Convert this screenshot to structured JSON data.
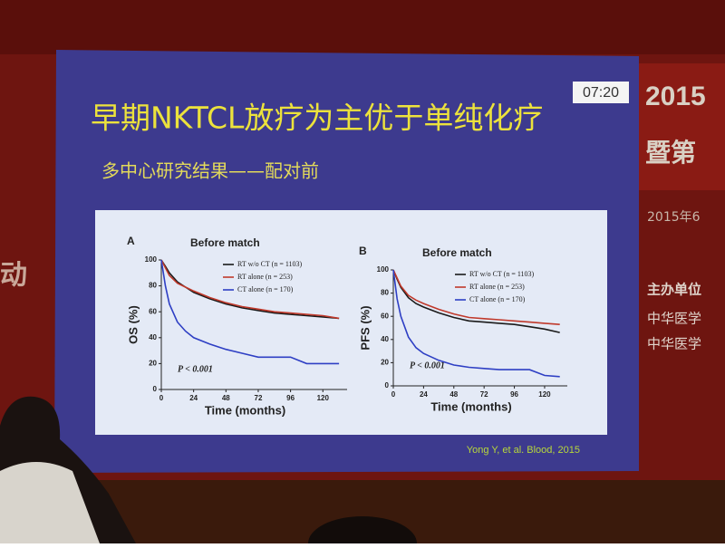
{
  "slide": {
    "title": "早期NKTCL放疗为主优于单纯化疗",
    "subtitle": "多中心研究结果——配对前",
    "timer": "07:20",
    "citation": "Yong Y, et al. Blood, 2015"
  },
  "background": {
    "banner_year": "2015",
    "banner_line": "暨第",
    "banner_date": "2015年6",
    "organizer_label": "主办单位",
    "organizer_1": "中华医学",
    "organizer_2": "中华医学",
    "left_char": "动"
  },
  "chart_data": [
    {
      "type": "line",
      "panel_label": "A",
      "title": "Before match",
      "x_label": "Time (months)",
      "y_label": "OS (%)",
      "annotation": "P < 0.001",
      "x": [
        0,
        3,
        6,
        12,
        18,
        24,
        36,
        48,
        60,
        72,
        84,
        96,
        108,
        120,
        132
      ],
      "xlim": [
        0,
        138
      ],
      "xticks": [
        0,
        24,
        48,
        72,
        96,
        120
      ],
      "ylim": [
        0,
        100
      ],
      "yticks": [
        0,
        20,
        40,
        60,
        80,
        100
      ],
      "legend": "upper right",
      "series": [
        {
          "name": "RT w/o CT (n = 1103)",
          "color": "#1a1a1a",
          "values": [
            100,
            95,
            90,
            83,
            79,
            75,
            70,
            66,
            63,
            61,
            59,
            58,
            57,
            56,
            55
          ]
        },
        {
          "name": "RT alone (n = 253)",
          "color": "#c0392b",
          "values": [
            100,
            94,
            88,
            82,
            79,
            76,
            71,
            67,
            64,
            62,
            60,
            59,
            58,
            57,
            55
          ]
        },
        {
          "name": "CT alone (n = 170)",
          "color": "#2e3fc4",
          "values": [
            100,
            80,
            66,
            52,
            45,
            40,
            35,
            31,
            28,
            25,
            25,
            25,
            20,
            20,
            20
          ]
        }
      ]
    },
    {
      "type": "line",
      "panel_label": "B",
      "title": "Before match",
      "x_label": "Time (months)",
      "y_label": "PFS (%)",
      "annotation": "P < 0.001",
      "x": [
        0,
        3,
        6,
        12,
        18,
        24,
        36,
        48,
        60,
        72,
        84,
        96,
        108,
        120,
        132
      ],
      "xlim": [
        0,
        138
      ],
      "xticks": [
        0,
        24,
        48,
        72,
        96,
        120
      ],
      "ylim": [
        0,
        100
      ],
      "yticks": [
        0,
        20,
        40,
        60,
        80,
        100
      ],
      "legend": "upper right",
      "series": [
        {
          "name": "RT w/o CT (n = 1103)",
          "color": "#1a1a1a",
          "values": [
            100,
            92,
            85,
            76,
            71,
            68,
            63,
            59,
            56,
            55,
            54,
            53,
            51,
            49,
            46
          ]
        },
        {
          "name": "RT alone (n = 253)",
          "color": "#c0392b",
          "values": [
            100,
            93,
            86,
            78,
            74,
            71,
            66,
            62,
            59,
            58,
            57,
            56,
            55,
            54,
            53
          ]
        },
        {
          "name": "CT alone (n = 170)",
          "color": "#2e3fc4",
          "values": [
            100,
            75,
            60,
            42,
            33,
            28,
            22,
            18,
            16,
            15,
            14,
            14,
            14,
            9,
            8
          ]
        }
      ]
    }
  ]
}
